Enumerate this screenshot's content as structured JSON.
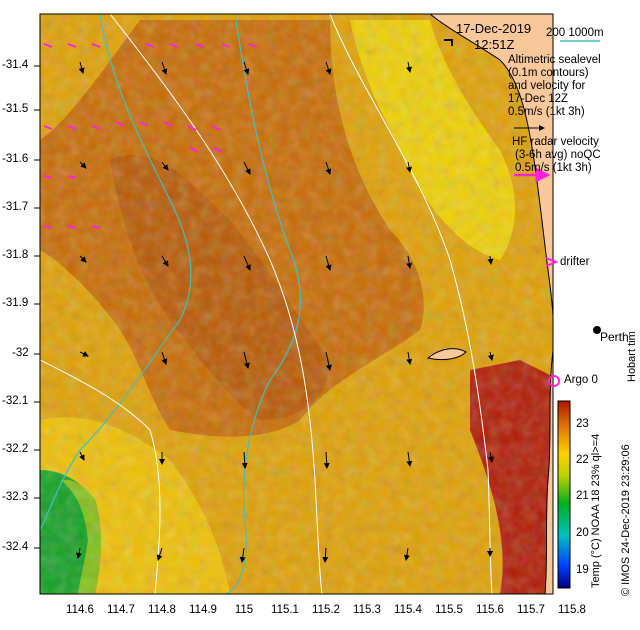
{
  "header": {
    "date": "17-Dec-2019",
    "time": "12:51Z",
    "bathymetry_legend": "200  1000m"
  },
  "legend": {
    "altimetry_lines": [
      "Altimetric sealevel",
      "(0.1m contours)",
      "and velocity for",
      "17-Dec 12Z",
      "0.5m/s (1kt 3h)"
    ],
    "hf_radar_lines": [
      "HF radar velocity",
      "(3-6h avg) noQC",
      "0.5m/s (1kt 3h)"
    ],
    "drifter_label": "drifter",
    "argo_label": "Argo 0",
    "place_label": "Perth",
    "place_label_vertical": "Hobart tim"
  },
  "axes": {
    "y_ticks": [
      "-31.4",
      "-31.5",
      "-31.6",
      "-31.7",
      "-31.8",
      "-31.9",
      "-32",
      "-32.1",
      "-32.2",
      "-32.3",
      "-32.4"
    ],
    "x_ticks": [
      "114.6",
      "114.7",
      "114.8",
      "114.9",
      "115",
      "115.1",
      "115.2",
      "115.3",
      "115.4",
      "115.5",
      "115.6",
      "115.7",
      "115.8"
    ]
  },
  "colorbar": {
    "label": "Temp  (°C) NOAA 18 23% ql>=4",
    "ticks": [
      "23",
      "22",
      "21",
      "20",
      "19"
    ],
    "min": 18.5,
    "max": 23.5
  },
  "credit": "© IMOS 24-Dec-2019 23:29:06",
  "colors": {
    "land": "#f9c89a",
    "warm": "#b01800",
    "cold": "#10a020",
    "bathymetry": "#40c0c0",
    "hf_arrow": "#ff20e0",
    "alt_arrow": "#000000"
  }
}
